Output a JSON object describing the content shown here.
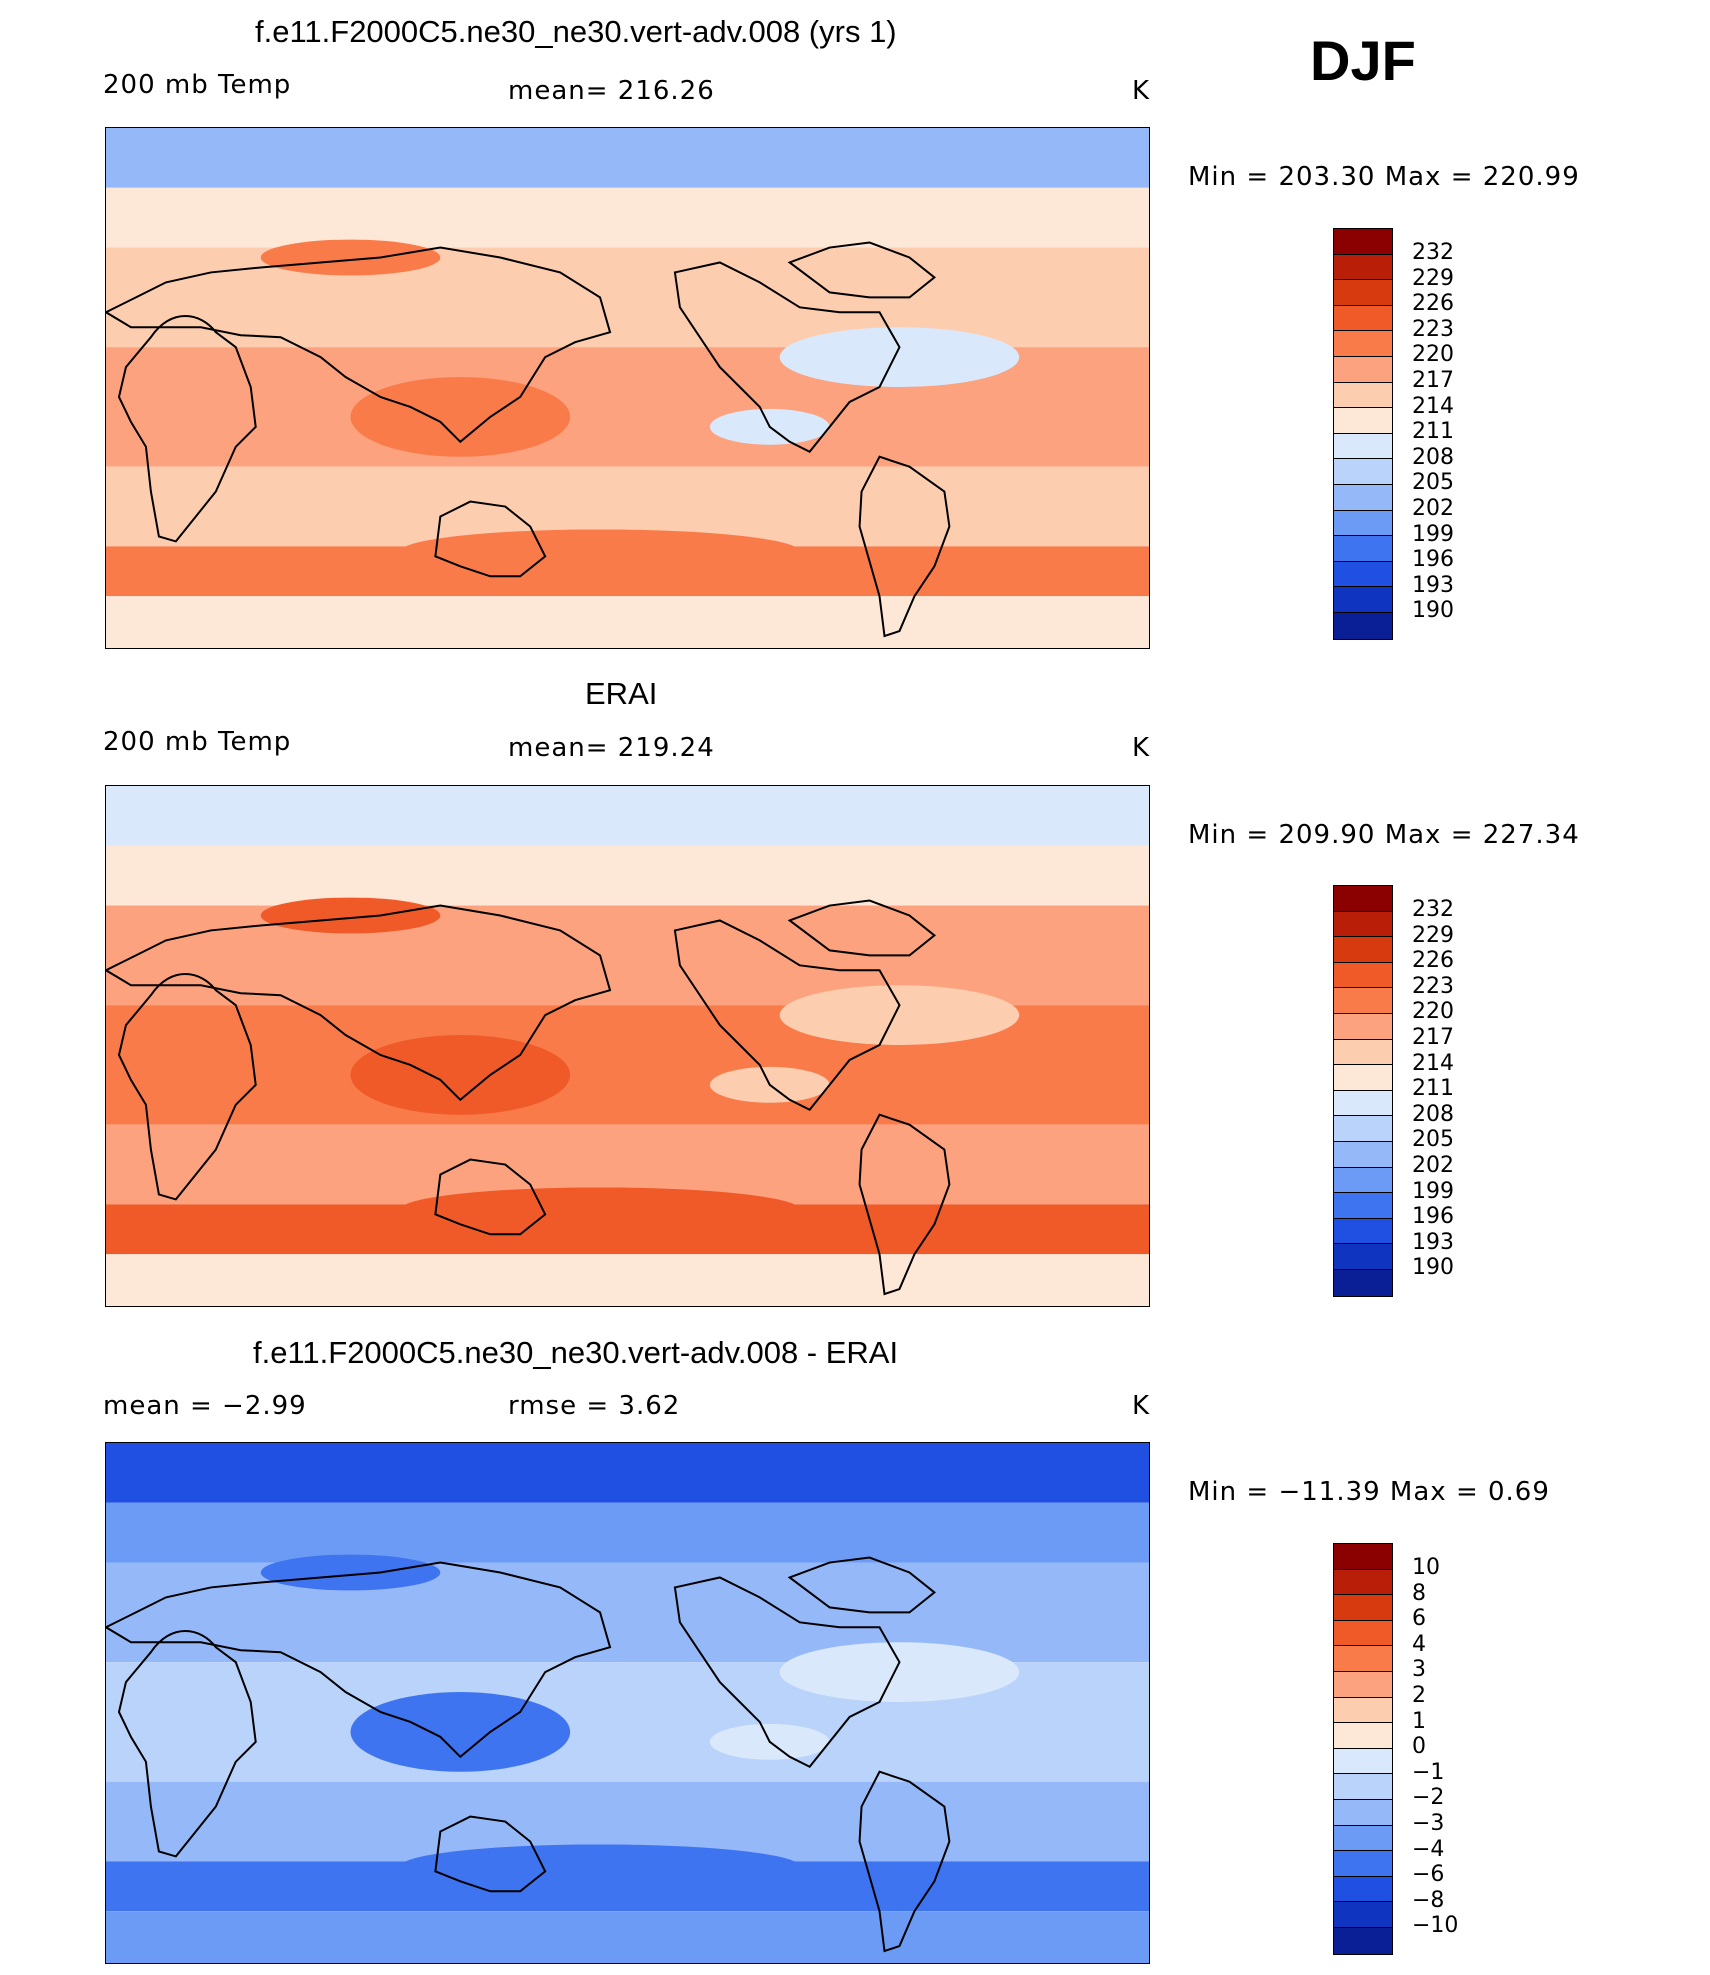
{
  "season": "DJF",
  "panels": [
    {
      "title": "f.e11.F2000C5.ne30_ne30.vert-adv.008 (yrs 1)",
      "left_label": "200 mb Temp",
      "center_label": "mean=  216.26",
      "right_label": "K",
      "minmax": "Min  =  203.30  Max  =  220.99",
      "colorbar": {
        "colors": [
          "#8b0000",
          "#b81e08",
          "#d83a10",
          "#f05a28",
          "#f97b4a",
          "#fca27e",
          "#fdcdb0",
          "#fde7d6",
          "#d9e8fa",
          "#bad3fa",
          "#95b9f8",
          "#6c9bf5",
          "#3e74ef",
          "#1f50e2",
          "#0f34bf",
          "#0a1f96",
          "#060f70"
        ],
        "labels": [
          "232",
          "229",
          "226",
          "223",
          "220",
          "217",
          "214",
          "211",
          "208",
          "205",
          "202",
          "199",
          "196",
          "193",
          "190"
        ]
      },
      "palette": {
        "polar": "#95b9f8",
        "subpolar": "#fde7d6",
        "mid": "#fdcdb0",
        "tropics": "#fca27e",
        "warm": "#f97b4a",
        "cool": "#d9e8fa"
      }
    },
    {
      "title": "ERAI",
      "left_label": "200 mb Temp",
      "center_label": "mean=  219.24",
      "right_label": "K",
      "minmax": "Min  =  209.90  Max  =  227.34",
      "colorbar": {
        "colors": [
          "#8b0000",
          "#b81e08",
          "#d83a10",
          "#f05a28",
          "#f97b4a",
          "#fca27e",
          "#fdcdb0",
          "#fde7d6",
          "#d9e8fa",
          "#bad3fa",
          "#95b9f8",
          "#6c9bf5",
          "#3e74ef",
          "#1f50e2",
          "#0f34bf",
          "#0a1f96",
          "#060f70"
        ],
        "labels": [
          "232",
          "229",
          "226",
          "223",
          "220",
          "217",
          "214",
          "211",
          "208",
          "205",
          "202",
          "199",
          "196",
          "193",
          "190"
        ]
      },
      "palette": {
        "polar": "#d9e8fa",
        "subpolar": "#fde7d6",
        "mid": "#fca27e",
        "tropics": "#f97b4a",
        "warm": "#f05a28",
        "cool": "#fdcdb0"
      }
    },
    {
      "title": "f.e11.F2000C5.ne30_ne30.vert-adv.008 - ERAI",
      "left_label": "mean =    −2.99",
      "center_label": "rmse =     3.62",
      "right_label": "K",
      "minmax": "Min  =  −11.39  Max  =     0.69",
      "colorbar": {
        "colors": [
          "#8b0000",
          "#b81e08",
          "#d83a10",
          "#f05a28",
          "#f97b4a",
          "#fca27e",
          "#fdcdb0",
          "#fde7d6",
          "#d9e8fa",
          "#bad3fa",
          "#95b9f8",
          "#6c9bf5",
          "#3e74ef",
          "#1f50e2",
          "#0f34bf",
          "#0a1f96",
          "#060f70"
        ],
        "labels": [
          "10",
          "8",
          "6",
          "4",
          "3",
          "2",
          "1",
          "0",
          "−1",
          "−2",
          "−3",
          "−4",
          "−6",
          "−8",
          "−10"
        ]
      },
      "palette": {
        "polar": "#1f50e2",
        "subpolar": "#6c9bf5",
        "mid": "#95b9f8",
        "tropics": "#bad3fa",
        "warm": "#3e74ef",
        "cool": "#d9e8fa"
      }
    }
  ]
}
